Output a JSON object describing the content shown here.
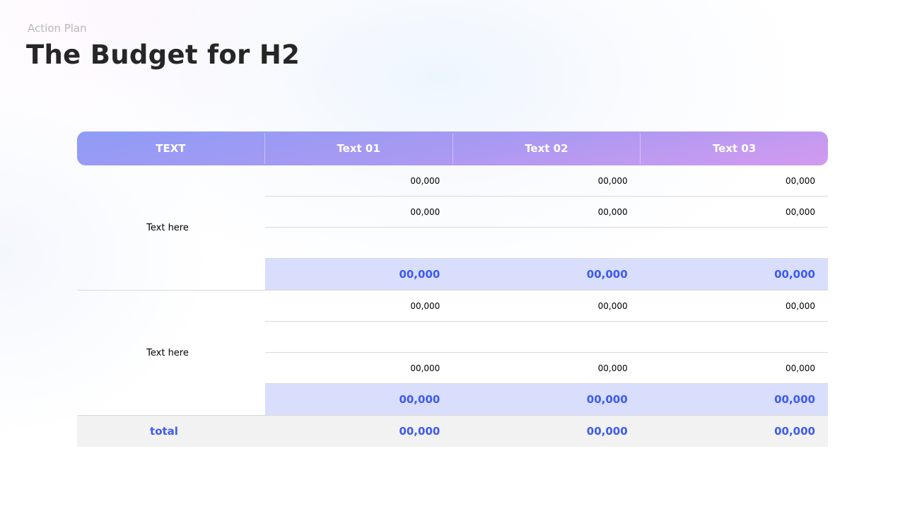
{
  "header": {
    "subtitle": "Action Plan",
    "title": "The Budget for H2"
  },
  "colors": {
    "accent": "#3d5af1",
    "subtotal_bg": "#d8defc",
    "header_gradient": [
      "#8e9cf6",
      "#d39af0"
    ]
  },
  "table": {
    "columns": [
      "TEXT",
      "Text 01",
      "Text 02",
      "Text 03"
    ],
    "groups": [
      {
        "label": "Text here",
        "rows": [
          [
            "00,000",
            "00,000",
            "00,000"
          ],
          [
            "00,000",
            "00,000",
            "00,000"
          ],
          [
            "",
            "",
            ""
          ]
        ],
        "subtotal": [
          "00,000",
          "00,000",
          "00,000"
        ]
      },
      {
        "label": "Text here",
        "rows": [
          [
            "00,000",
            "00,000",
            "00,000"
          ],
          [
            "",
            "",
            ""
          ],
          [
            "00,000",
            "00,000",
            "00,000"
          ]
        ],
        "subtotal": [
          "00,000",
          "00,000",
          "00,000"
        ]
      }
    ],
    "total": {
      "label": "total",
      "values": [
        "00,000",
        "00,000",
        "00,000"
      ]
    }
  }
}
